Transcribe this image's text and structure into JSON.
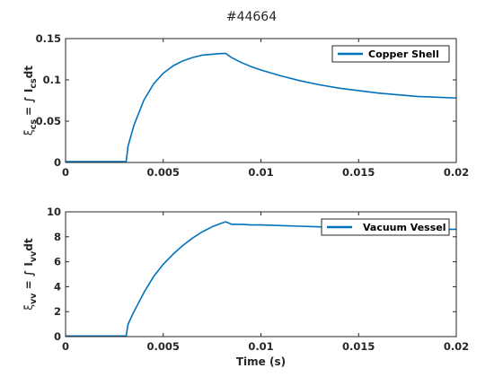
{
  "figure": {
    "title": "#44664",
    "line_color": "#0072BD"
  },
  "chart_data": [
    {
      "type": "line",
      "title": "#44664",
      "xlabel": "",
      "ylabel": "ξ_cs = ∫ I_cs dt",
      "ylabel_parts": {
        "sym": "ξ",
        "sym_sub": "cs",
        "eq": " = ∫ I",
        "i_sub": "cs",
        "tail": "dt"
      },
      "xlim": [
        0,
        0.02
      ],
      "ylim": [
        0,
        0.15
      ],
      "xticks": [
        0,
        0.005,
        0.01,
        0.015,
        0.02
      ],
      "xtick_labels": [
        "0",
        "0.005",
        "0.01",
        "0.015",
        "0.02"
      ],
      "yticks": [
        0,
        0.05,
        0.1,
        0.15
      ],
      "ytick_labels": [
        "0",
        "0.05",
        "0.1",
        "0.15"
      ],
      "legend_position": "top-right",
      "series": [
        {
          "name": "Copper Shell",
          "color": "#0072BD",
          "x": [
            0,
            0.001,
            0.002,
            0.0031,
            0.0032,
            0.0035,
            0.004,
            0.0045,
            0.005,
            0.0055,
            0.006,
            0.0065,
            0.007,
            0.0075,
            0.008,
            0.0082,
            0.0085,
            0.009,
            0.0095,
            0.01,
            0.011,
            0.012,
            0.013,
            0.014,
            0.015,
            0.016,
            0.017,
            0.018,
            0.019,
            0.02
          ],
          "y": [
            0.001,
            0.001,
            0.001,
            0.001,
            0.02,
            0.045,
            0.075,
            0.095,
            0.108,
            0.117,
            0.123,
            0.127,
            0.13,
            0.131,
            0.132,
            0.132,
            0.127,
            0.121,
            0.116,
            0.112,
            0.105,
            0.099,
            0.094,
            0.09,
            0.087,
            0.084,
            0.082,
            0.08,
            0.079,
            0.078
          ]
        }
      ]
    },
    {
      "type": "line",
      "xlabel": "Time (s)",
      "ylabel": "ξ_vv = ∫ I_vv dt",
      "ylabel_parts": {
        "sym": "ξ",
        "sym_sub": "vv",
        "eq": " = ∫ I",
        "i_sub": "vv",
        "tail": "dt"
      },
      "xlim": [
        0,
        0.02
      ],
      "ylim": [
        0,
        10
      ],
      "xticks": [
        0,
        0.005,
        0.01,
        0.015,
        0.02
      ],
      "xtick_labels": [
        "0",
        "0.005",
        "0.01",
        "0.015",
        "0.02"
      ],
      "yticks": [
        0,
        2,
        4,
        6,
        8,
        10
      ],
      "ytick_labels": [
        "0",
        "2",
        "4",
        "6",
        "8",
        "10"
      ],
      "legend_position": "top-right",
      "series": [
        {
          "name": "Vacuum Vessel",
          "color": "#0072BD",
          "x": [
            0,
            0.001,
            0.002,
            0.0031,
            0.0032,
            0.0035,
            0.004,
            0.0045,
            0.005,
            0.0055,
            0.006,
            0.0065,
            0.007,
            0.0075,
            0.008,
            0.0082,
            0.0085,
            0.009,
            0.0095,
            0.01,
            0.011,
            0.012,
            0.013,
            0.014,
            0.015,
            0.016,
            0.017,
            0.018,
            0.019,
            0.02
          ],
          "y": [
            0.05,
            0.05,
            0.05,
            0.05,
            1.0,
            2.0,
            3.5,
            4.8,
            5.8,
            6.6,
            7.3,
            7.9,
            8.4,
            8.8,
            9.1,
            9.2,
            9.0,
            9.0,
            8.95,
            8.95,
            8.9,
            8.85,
            8.8,
            8.75,
            8.7,
            8.7,
            8.7,
            8.65,
            8.6,
            8.6
          ]
        }
      ]
    }
  ]
}
